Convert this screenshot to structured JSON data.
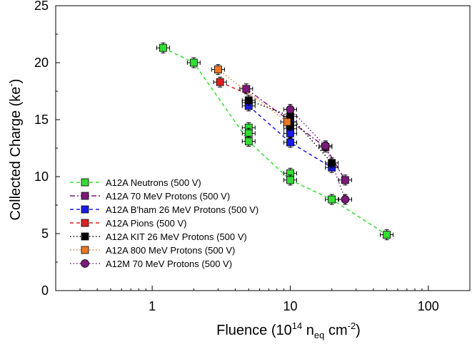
{
  "chart_data": {
    "type": "scatter",
    "xscale": "log",
    "xlim": [
      0.2,
      200
    ],
    "ylim": [
      0,
      25
    ],
    "x_ticks": [
      1,
      10,
      100
    ],
    "x_tick_labels": [
      "1",
      "10",
      "100"
    ],
    "y_ticks": [
      0,
      5,
      10,
      15,
      20,
      25
    ],
    "y_tick_labels": [
      "0",
      "5",
      "10",
      "15",
      "20",
      "25"
    ],
    "xlabel": {
      "main": "Fluence (10",
      "exp": "14",
      "mid": " n",
      "sub": "eq",
      "tail": " cm",
      "exp2": "-2",
      "close": ")"
    },
    "ylabel": {
      "main": "Collected Charge (ke",
      "sup": "-",
      "close": ")"
    },
    "grid": false,
    "legend_position": "bottom-left",
    "series": [
      {
        "name": "A12A Neutrons (500 V)",
        "color": "#33dd33",
        "marker": "square",
        "line": "dash",
        "points": [
          [
            1.2,
            21.3
          ],
          [
            2.0,
            20.0
          ],
          [
            5.0,
            14.3
          ],
          [
            5.0,
            13.8
          ],
          [
            5.0,
            13.1
          ],
          [
            10.0,
            10.3
          ],
          [
            10.0,
            9.7
          ],
          [
            20.0,
            8.0
          ],
          [
            50.0,
            4.9
          ]
        ],
        "path": [
          [
            1.2,
            21.3
          ],
          [
            2.0,
            20.0
          ],
          [
            5.0,
            13.1
          ],
          [
            10.0,
            9.7
          ],
          [
            20.0,
            8.0
          ],
          [
            50.0,
            4.9
          ]
        ]
      },
      {
        "name": "A12A 70 MeV Protons (500 V)",
        "color": "#7b1a7b",
        "marker": "square",
        "line": "dashdot",
        "points": [
          [
            4.8,
            17.7
          ],
          [
            18.0,
            12.6
          ],
          [
            25.0,
            9.7
          ]
        ],
        "path": [
          [
            4.8,
            17.7
          ],
          [
            18.0,
            12.6
          ],
          [
            25.0,
            9.7
          ]
        ]
      },
      {
        "name": "A12A B'ham 26 MeV Protons (500 V)",
        "color": "#1a1aee",
        "marker": "square",
        "line": "dash",
        "points": [
          [
            5.0,
            16.5
          ],
          [
            5.0,
            16.2
          ],
          [
            10.0,
            14.8
          ],
          [
            10.0,
            14.2
          ],
          [
            10.0,
            13.8
          ],
          [
            10.0,
            13.0
          ],
          [
            20.0,
            10.8
          ]
        ],
        "path": [
          [
            5.0,
            16.2
          ],
          [
            10.0,
            13.0
          ],
          [
            20.0,
            10.8
          ]
        ]
      },
      {
        "name": "A12A Pions (500 V)",
        "color": "#e02020",
        "marker": "square",
        "line": "dash",
        "points": [
          [
            3.1,
            18.3
          ]
        ],
        "path": [
          [
            3.1,
            18.3
          ],
          [
            4.8,
            17.3
          ]
        ]
      },
      {
        "name": "A12A KIT 26 MeV Protons (500 V)",
        "color": "#000000",
        "marker": "square",
        "line": "dot",
        "points": [
          [
            5.0,
            16.7
          ],
          [
            10.0,
            15.3
          ],
          [
            10.0,
            14.5
          ],
          [
            20.0,
            11.2
          ]
        ],
        "path": [
          [
            5.0,
            16.7
          ],
          [
            10.0,
            15.3
          ],
          [
            20.0,
            11.2
          ]
        ]
      },
      {
        "name": "A12A 800 MeV Protons (500 V)",
        "color": "#ee7722",
        "marker": "square",
        "line": "dot",
        "points": [
          [
            3.0,
            19.4
          ],
          [
            9.5,
            14.8
          ]
        ],
        "path": [
          [
            3.0,
            19.4
          ],
          [
            9.5,
            14.8
          ]
        ]
      },
      {
        "name": "A12M 70 MeV Protons (500 V)",
        "color": "#7b1a7b",
        "marker": "circle",
        "line": "dot",
        "points": [
          [
            10.0,
            15.9
          ],
          [
            18.0,
            12.7
          ],
          [
            25.0,
            8.0
          ]
        ],
        "path": [
          [
            10.0,
            15.9
          ],
          [
            18.0,
            12.7
          ],
          [
            25.0,
            8.0
          ]
        ]
      }
    ]
  }
}
